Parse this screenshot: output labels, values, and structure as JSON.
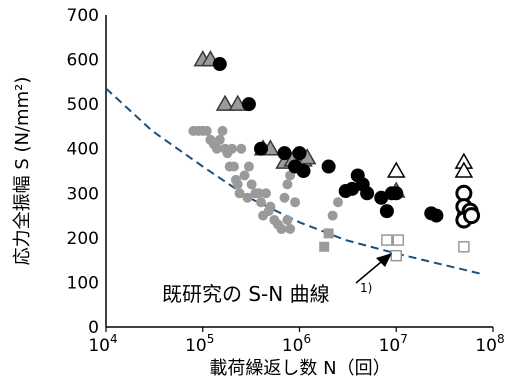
{
  "chart_data": {
    "type": "scatter",
    "title": "",
    "xlabel": "載荷繰返し数 N（回）",
    "ylabel": "応力全振幅 S (N/mm²)",
    "x_scale": "log",
    "xlim": [
      10000,
      100000000
    ],
    "ylim": [
      0,
      700
    ],
    "y_ticks": [
      "0",
      "100",
      "200",
      "300",
      "400",
      "500",
      "600",
      "700"
    ],
    "x_ticks": [
      {
        "base": "10",
        "exp": "4",
        "value": 10000
      },
      {
        "base": "10",
        "exp": "5",
        "value": 100000
      },
      {
        "base": "10",
        "exp": "6",
        "value": 1000000
      },
      {
        "base": "10",
        "exp": "7",
        "value": 10000000
      },
      {
        "base": "10",
        "exp": "8",
        "value": 100000000
      }
    ],
    "grid": false,
    "annotation": {
      "text": "既研究の S-N 曲線",
      "superscript": "1)"
    },
    "reference_curve": {
      "style": "dashed",
      "color": "#1f4e79",
      "points": [
        [
          10000,
          535
        ],
        [
          30000,
          440
        ],
        [
          100000,
          360
        ],
        [
          300000,
          290
        ],
        [
          1000000,
          235
        ],
        [
          3000000,
          195
        ],
        [
          10000000,
          165
        ],
        [
          30000000,
          140
        ],
        [
          80000000,
          118
        ]
      ]
    },
    "series": [
      {
        "marker": "circle",
        "fill": "#9a9a9a",
        "stroke": "none",
        "points": [
          [
            80000,
            440
          ],
          [
            90000,
            440
          ],
          [
            100000,
            440
          ],
          [
            110000,
            440
          ],
          [
            120000,
            420
          ],
          [
            130000,
            410
          ],
          [
            140000,
            400
          ],
          [
            150000,
            420
          ],
          [
            160000,
            440
          ],
          [
            170000,
            400
          ],
          [
            180000,
            390
          ],
          [
            190000,
            360
          ],
          [
            200000,
            400
          ],
          [
            210000,
            360
          ],
          [
            220000,
            330
          ],
          [
            230000,
            320
          ],
          [
            240000,
            300
          ],
          [
            250000,
            400
          ],
          [
            270000,
            340
          ],
          [
            290000,
            290
          ],
          [
            300000,
            360
          ],
          [
            320000,
            320
          ],
          [
            350000,
            300
          ],
          [
            380000,
            300
          ],
          [
            400000,
            280
          ],
          [
            420000,
            250
          ],
          [
            450000,
            300
          ],
          [
            480000,
            260
          ],
          [
            500000,
            270
          ],
          [
            550000,
            240
          ],
          [
            600000,
            230
          ],
          [
            650000,
            220
          ],
          [
            700000,
            290
          ],
          [
            750000,
            320
          ],
          [
            800000,
            340
          ],
          [
            900000,
            280
          ],
          [
            800000,
            220
          ],
          [
            750000,
            240
          ],
          [
            2200000,
            250
          ],
          [
            2500000,
            280
          ]
        ]
      },
      {
        "marker": "square",
        "fill": "#9a9a9a",
        "stroke": "none",
        "points": [
          [
            1800000,
            180
          ],
          [
            2000000,
            210
          ]
        ]
      },
      {
        "marker": "square",
        "fill": "#ffffff",
        "stroke": "#9a9a9a",
        "points": [
          [
            8000000,
            195
          ],
          [
            10000000,
            160
          ],
          [
            10500000,
            195
          ],
          [
            50000000,
            180
          ]
        ]
      },
      {
        "marker": "triangle",
        "fill": "#9a9a9a",
        "stroke": "#3a3a3a",
        "points": [
          [
            100000,
            600
          ],
          [
            120000,
            600
          ],
          [
            170000,
            500
          ],
          [
            230000,
            500
          ],
          [
            420000,
            400
          ],
          [
            500000,
            400
          ],
          [
            700000,
            370
          ],
          [
            850000,
            375
          ],
          [
            1100000,
            375
          ],
          [
            1200000,
            380
          ],
          [
            10000000,
            305
          ]
        ]
      },
      {
        "marker": "circle",
        "fill": "#000000",
        "stroke": "none",
        "points": [
          [
            150000,
            590
          ],
          [
            300000,
            500
          ],
          [
            400000,
            400
          ],
          [
            700000,
            390
          ],
          [
            900000,
            360
          ],
          [
            1000000,
            390
          ],
          [
            1100000,
            350
          ],
          [
            2000000,
            360
          ],
          [
            3000000,
            305
          ],
          [
            3500000,
            310
          ],
          [
            4000000,
            340
          ],
          [
            4500000,
            320
          ],
          [
            5000000,
            300
          ],
          [
            7000000,
            290
          ],
          [
            8000000,
            260
          ],
          [
            9000000,
            300
          ],
          [
            10000000,
            300
          ],
          [
            23000000,
            255
          ],
          [
            26000000,
            250
          ],
          [
            50000000,
            250
          ]
        ]
      },
      {
        "marker": "triangle",
        "fill": "#ffffff",
        "stroke": "#000000",
        "points": [
          [
            10000000,
            350
          ],
          [
            50000000,
            370
          ],
          [
            50000000,
            350
          ]
        ]
      },
      {
        "marker": "circle",
        "fill": "#ffffff",
        "stroke": "#000000",
        "points": [
          [
            50000000,
            300
          ],
          [
            50000000,
            270
          ],
          [
            58000000,
            260
          ],
          [
            50000000,
            240
          ],
          [
            60000000,
            250
          ]
        ]
      }
    ]
  }
}
